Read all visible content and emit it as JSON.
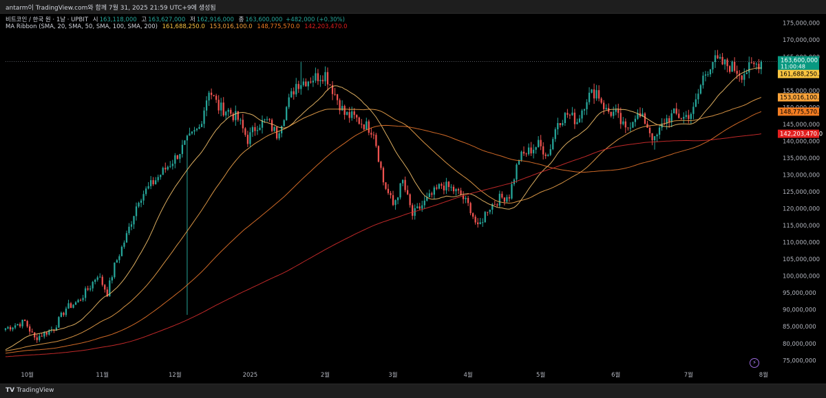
{
  "header": {
    "caption": "antarm이 TradingView.com와 함께 7월 31, 2025 21:59 UTC+9에 생성됨"
  },
  "legend": {
    "symbol": "비트코인 / 한국 원 · 1날 · UPBIT",
    "ohlc": [
      {
        "label": "시",
        "value": "163,118,000"
      },
      {
        "label": "고",
        "value": "163,627,000"
      },
      {
        "label": "저",
        "value": "162,916,000"
      },
      {
        "label": "종",
        "value": "163,600,000"
      }
    ],
    "change": "+482,000 (+0.30%)",
    "ma_title": "MA Ribbon (SMA, 20, SMA, 50, SMA, 100, SMA, 200)",
    "ma_values": [
      "161,688,250.0",
      "153,016,100.0",
      "148,775,570.0",
      "142,203,470.0"
    ]
  },
  "colors": {
    "up": "#26a69a",
    "down": "#ef5350",
    "ma20": "#f6c26b",
    "ma50": "#f0a44b",
    "ma100": "#e8752b",
    "ma200": "#d62d2d"
  },
  "chart_data": {
    "type": "candlestick",
    "ylim": [
      72000000,
      178000000
    ],
    "y_ticks": [
      75000000,
      80000000,
      85000000,
      90000000,
      95000000,
      100000000,
      105000000,
      110000000,
      115000000,
      120000000,
      125000000,
      130000000,
      135000000,
      140000000,
      145000000,
      150000000,
      155000000,
      160000000,
      165000000,
      170000000,
      175000000
    ],
    "y_tick_labels": [
      "75,000,000",
      "80,000,000",
      "85,000,000",
      "90,000,000",
      "95,000,000",
      "100,000,000",
      "105,000,000",
      "110,000,000",
      "115,000,000",
      "120,000,000",
      "125,000,000",
      "130,000,000",
      "135,000,000",
      "140,000,000",
      "145,000,000",
      "150,000,000",
      "155,000,000",
      "160,000,000",
      "165,000,000",
      "170,000,000",
      "175,000,000"
    ],
    "x_ticks": [
      {
        "label": "10월",
        "day": 9
      },
      {
        "label": "11월",
        "day": 40
      },
      {
        "label": "12월",
        "day": 70
      },
      {
        "label": "2025",
        "day": 101
      },
      {
        "label": "2월",
        "day": 132
      },
      {
        "label": "3월",
        "day": 160
      },
      {
        "label": "4월",
        "day": 191
      },
      {
        "label": "5월",
        "day": 221
      },
      {
        "label": "6월",
        "day": 252
      },
      {
        "label": "7월",
        "day": 282
      },
      {
        "label": "8월",
        "day": 313
      }
    ],
    "x_range": [
      0,
      318
    ],
    "last_day": 312,
    "price_keypoints": [
      [
        0,
        84.5
      ],
      [
        8,
        86.5
      ],
      [
        12,
        81.5
      ],
      [
        20,
        84.5
      ],
      [
        25,
        90.5
      ],
      [
        30,
        92.5
      ],
      [
        35,
        97
      ],
      [
        38,
        100.5
      ],
      [
        42,
        95
      ],
      [
        45,
        103
      ],
      [
        50,
        112
      ],
      [
        55,
        123
      ],
      [
        60,
        127
      ],
      [
        65,
        131
      ],
      [
        70,
        135
      ],
      [
        75,
        140
      ],
      [
        80,
        144
      ],
      [
        84,
        155.5
      ],
      [
        88,
        150
      ],
      [
        92,
        149
      ],
      [
        96,
        146.5
      ],
      [
        100,
        140.5
      ],
      [
        104,
        145
      ],
      [
        108,
        146
      ],
      [
        112,
        142
      ],
      [
        116,
        150
      ],
      [
        120,
        157
      ],
      [
        124,
        158
      ],
      [
        128,
        159
      ],
      [
        132,
        160
      ],
      [
        136,
        154
      ],
      [
        140,
        148
      ],
      [
        144,
        147
      ],
      [
        148,
        145
      ],
      [
        152,
        143
      ],
      [
        156,
        128
      ],
      [
        160,
        121
      ],
      [
        164,
        128
      ],
      [
        168,
        118
      ],
      [
        172,
        121
      ],
      [
        176,
        124
      ],
      [
        180,
        127
      ],
      [
        184,
        126
      ],
      [
        188,
        124
      ],
      [
        192,
        120
      ],
      [
        195,
        114
      ],
      [
        199,
        120
      ],
      [
        204,
        123
      ],
      [
        208,
        124
      ],
      [
        212,
        135
      ],
      [
        216,
        137
      ],
      [
        220,
        139
      ],
      [
        224,
        136
      ],
      [
        228,
        146
      ],
      [
        232,
        148
      ],
      [
        236,
        146
      ],
      [
        240,
        153
      ],
      [
        244,
        155
      ],
      [
        248,
        149
      ],
      [
        252,
        148
      ],
      [
        256,
        143
      ],
      [
        260,
        148
      ],
      [
        264,
        146
      ],
      [
        268,
        140
      ],
      [
        272,
        146
      ],
      [
        276,
        148
      ],
      [
        280,
        147
      ],
      [
        284,
        149
      ],
      [
        288,
        159
      ],
      [
        292,
        164
      ],
      [
        296,
        163
      ],
      [
        300,
        162
      ],
      [
        304,
        160
      ],
      [
        308,
        162
      ],
      [
        312,
        163.6
      ]
    ],
    "wick_spikes": [
      {
        "day": 75,
        "low": 88.5
      },
      {
        "day": 122,
        "high": 163.5
      },
      {
        "day": 293,
        "high": 167.0
      },
      {
        "day": 268,
        "low": 137.5
      }
    ],
    "series": [
      {
        "name": "SMA 20",
        "period": 20,
        "last": 161688250
      },
      {
        "name": "SMA 50",
        "period": 50,
        "last": 153016100
      },
      {
        "name": "SMA 100",
        "period": 100,
        "last": 148775570
      },
      {
        "name": "SMA 200",
        "period": 200,
        "last": 142203470
      }
    ],
    "price_label": {
      "value": 163600000,
      "text": "163,600,000",
      "countdown": "11:00:48"
    },
    "ma_labels": [
      {
        "value": 161688250,
        "text": "161,688,250.0",
        "bg": "#f9c440",
        "fg": "#000000"
      },
      {
        "value": 153016100,
        "text": "153,016,100.0",
        "bg": "#f7a23a",
        "fg": "#000000"
      },
      {
        "value": 148775570,
        "text": "148,775,570.0",
        "bg": "#f27c22",
        "fg": "#000000"
      },
      {
        "value": 142203470,
        "text": "142,203,470.0",
        "bg": "#e31e1e",
        "fg": "#ffffff"
      }
    ]
  },
  "footer": {
    "brand": "TradingView"
  }
}
